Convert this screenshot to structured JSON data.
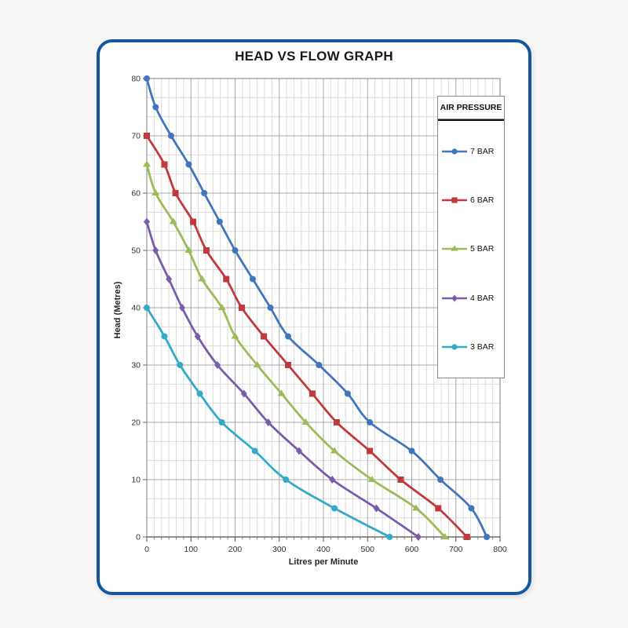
{
  "page": {
    "title": "HEAD VS FLOW GRAPH"
  },
  "legend": {
    "title": "AIR PRESSURE",
    "items": [
      {
        "label": "7 BAR",
        "color": "#4276BC",
        "marker": "circle"
      },
      {
        "label": "6 BAR",
        "color": "#C0393B",
        "marker": "square"
      },
      {
        "label": "5 BAR",
        "color": "#9DBB58",
        "marker": "triangle"
      },
      {
        "label": "4 BAR",
        "color": "#7A5DA8",
        "marker": "diamond"
      },
      {
        "label": "3 BAR",
        "color": "#35AAC8",
        "marker": "circle"
      }
    ]
  },
  "chart_data": {
    "type": "line",
    "title": "HEAD VS FLOW GRAPH",
    "xlabel": "Litres per Minute",
    "ylabel": "Head (Metres)",
    "xlim": [
      0,
      800
    ],
    "ylim": [
      0,
      80
    ],
    "xticks": [
      0,
      100,
      200,
      300,
      400,
      500,
      600,
      700,
      800
    ],
    "yticks": [
      0,
      10,
      20,
      30,
      40,
      50,
      60,
      70,
      80
    ],
    "x_minor_per_major": 6,
    "y_minor_per_major": 3,
    "grid": true,
    "legend_position": "right-overlay",
    "legend_title": "AIR PRESSURE",
    "series": [
      {
        "name": "7 BAR",
        "color": "#4276BC",
        "marker": "circle",
        "points": [
          [
            0,
            80
          ],
          [
            20,
            75
          ],
          [
            55,
            70
          ],
          [
            95,
            65
          ],
          [
            130,
            60
          ],
          [
            165,
            55
          ],
          [
            200,
            50
          ],
          [
            240,
            45
          ],
          [
            280,
            40
          ],
          [
            320,
            35
          ],
          [
            390,
            30
          ],
          [
            455,
            25
          ],
          [
            505,
            20
          ],
          [
            600,
            15
          ],
          [
            665,
            10
          ],
          [
            735,
            5
          ],
          [
            770,
            0
          ]
        ]
      },
      {
        "name": "6 BAR",
        "color": "#C0393B",
        "marker": "square",
        "points": [
          [
            0,
            70
          ],
          [
            40,
            65
          ],
          [
            65,
            60
          ],
          [
            105,
            55
          ],
          [
            135,
            50
          ],
          [
            180,
            45
          ],
          [
            215,
            40
          ],
          [
            265,
            35
          ],
          [
            320,
            30
          ],
          [
            375,
            25
          ],
          [
            430,
            20
          ],
          [
            505,
            15
          ],
          [
            575,
            10
          ],
          [
            660,
            5
          ],
          [
            725,
            0
          ]
        ]
      },
      {
        "name": "5 BAR",
        "color": "#9DBB58",
        "marker": "triangle",
        "points": [
          [
            0,
            65
          ],
          [
            20,
            60
          ],
          [
            60,
            55
          ],
          [
            95,
            50
          ],
          [
            125,
            45
          ],
          [
            170,
            40
          ],
          [
            200,
            35
          ],
          [
            250,
            30
          ],
          [
            305,
            25
          ],
          [
            360,
            20
          ],
          [
            425,
            15
          ],
          [
            510,
            10
          ],
          [
            610,
            5
          ],
          [
            675,
            0
          ]
        ]
      },
      {
        "name": "4 BAR",
        "color": "#7A5DA8",
        "marker": "diamond",
        "points": [
          [
            0,
            55
          ],
          [
            20,
            50
          ],
          [
            50,
            45
          ],
          [
            80,
            40
          ],
          [
            115,
            35
          ],
          [
            160,
            30
          ],
          [
            220,
            25
          ],
          [
            275,
            20
          ],
          [
            345,
            15
          ],
          [
            420,
            10
          ],
          [
            520,
            5
          ],
          [
            615,
            0
          ]
        ]
      },
      {
        "name": "3 BAR",
        "color": "#35AAC8",
        "marker": "circle",
        "points": [
          [
            0,
            40
          ],
          [
            40,
            35
          ],
          [
            75,
            30
          ],
          [
            120,
            25
          ],
          [
            170,
            20
          ],
          [
            245,
            15
          ],
          [
            315,
            10
          ],
          [
            425,
            5
          ],
          [
            550,
            0
          ]
        ]
      }
    ]
  }
}
